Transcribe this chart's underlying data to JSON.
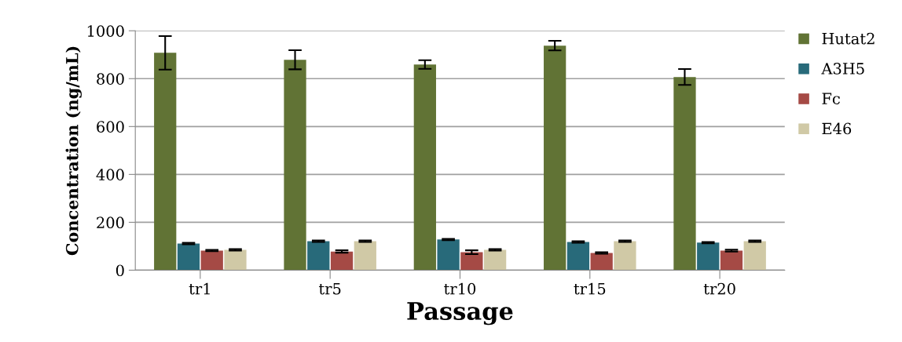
{
  "chart_data": {
    "type": "bar",
    "xlabel": "Passage",
    "ylabel": "Concentration (ng/mL)",
    "categories": [
      "tr1",
      "tr5",
      "tr10",
      "tr15",
      "tr20"
    ],
    "series": [
      {
        "name": "Hutat2",
        "color": "#617335",
        "values": [
          908,
          879,
          859,
          938,
          807
        ],
        "errors": [
          70,
          40,
          18,
          20,
          33
        ]
      },
      {
        "name": "A3H5",
        "color": "#286a7a",
        "values": [
          111,
          121,
          128,
          118,
          115
        ],
        "errors": [
          3,
          3,
          3,
          3,
          3
        ]
      },
      {
        "name": "Fc",
        "color": "#a54a45",
        "values": [
          82,
          78,
          75,
          72,
          82
        ],
        "errors": [
          3,
          5,
          8,
          3,
          4
        ]
      },
      {
        "name": "E46",
        "color": "#d0c9a6",
        "values": [
          85,
          121,
          85,
          121,
          121
        ],
        "errors": [
          3,
          3,
          3,
          3,
          3
        ]
      }
    ],
    "ylim": [
      0,
      1000
    ],
    "yticks": [
      0,
      200,
      400,
      600,
      800,
      1000
    ],
    "grid": "y",
    "legend": "right"
  }
}
